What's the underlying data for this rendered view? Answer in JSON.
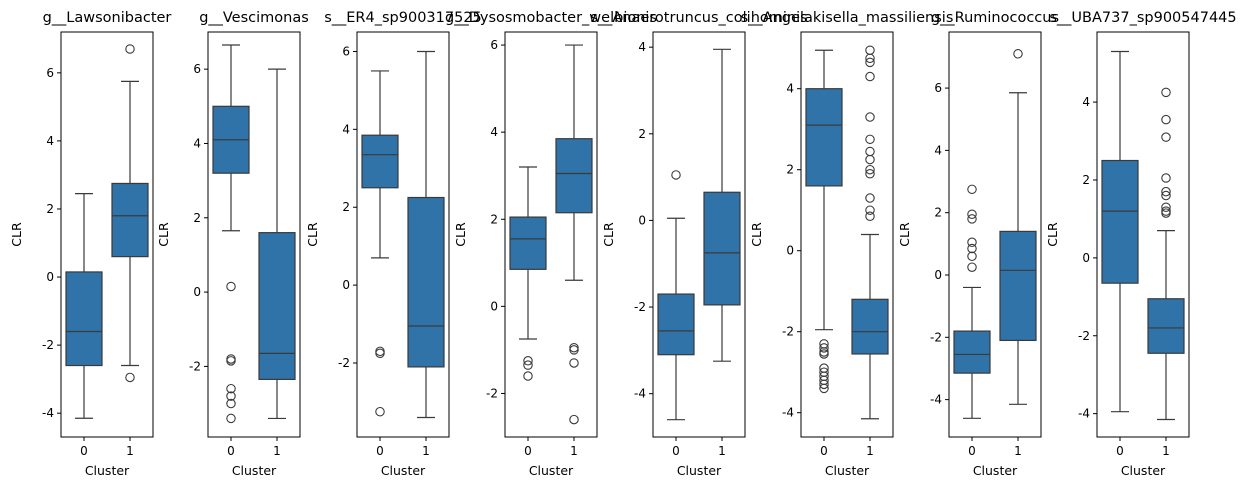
{
  "style": {
    "box_fill": "#2f73a8",
    "line_color": "#3a3a3a",
    "frame_color": "#000000"
  },
  "chart_data": [
    {
      "type": "box",
      "title": "g__Lawsonibacter",
      "xlabel": "Cluster",
      "ylabel": "CLR",
      "categories": [
        "0",
        "1"
      ],
      "ylim": [
        -4.7,
        7.2
      ],
      "yticks": [
        -4,
        -2,
        0,
        2,
        4,
        6
      ],
      "boxes": [
        {
          "category": "0",
          "whisker_low": -4.15,
          "q1": -2.6,
          "median": -1.6,
          "q3": 0.15,
          "whisker_high": 2.45,
          "outliers": []
        },
        {
          "category": "1",
          "whisker_low": -2.6,
          "q1": 0.6,
          "median": 1.8,
          "q3": 2.75,
          "whisker_high": 5.75,
          "outliers": [
            6.7,
            -2.95
          ]
        }
      ]
    },
    {
      "type": "box",
      "title": "g__Vescimonas",
      "xlabel": "Cluster",
      "ylabel": "CLR",
      "categories": [
        "0",
        "1"
      ],
      "ylim": [
        -3.9,
        7.0
      ],
      "yticks": [
        -2,
        0,
        2,
        4,
        6
      ],
      "boxes": [
        {
          "category": "0",
          "whisker_low": 1.65,
          "q1": 3.2,
          "median": 4.1,
          "q3": 5.0,
          "whisker_high": 6.65,
          "outliers": [
            0.15,
            -1.8,
            -1.85,
            -2.6,
            -2.8,
            -3.0,
            -3.4
          ]
        },
        {
          "category": "1",
          "whisker_low": -3.4,
          "q1": -2.35,
          "median": -1.65,
          "q3": 1.6,
          "whisker_high": 6.0,
          "outliers": []
        }
      ]
    },
    {
      "type": "box",
      "title": "s__ER4_sp900317525",
      "xlabel": "Cluster",
      "ylabel": "CLR",
      "categories": [
        "0",
        "1"
      ],
      "ylim": [
        -3.9,
        6.5
      ],
      "yticks": [
        -2,
        0,
        2,
        4,
        6
      ],
      "boxes": [
        {
          "category": "0",
          "whisker_low": 0.7,
          "q1": 2.5,
          "median": 3.35,
          "q3": 3.85,
          "whisker_high": 5.5,
          "outliers": [
            -1.7,
            -1.75,
            -3.25
          ]
        },
        {
          "category": "1",
          "whisker_low": -3.4,
          "q1": -2.1,
          "median": -1.05,
          "q3": 2.25,
          "whisker_high": 6.0,
          "outliers": []
        }
      ]
    },
    {
      "type": "box",
      "title": "g__Dysosmobacter_welbionis",
      "xlabel": "Cluster",
      "ylabel": "CLR",
      "categories": [
        "0",
        "1"
      ],
      "ylim": [
        -3.0,
        6.3
      ],
      "yticks": [
        -2,
        0,
        2,
        4,
        6
      ],
      "boxes": [
        {
          "category": "0",
          "whisker_low": -0.75,
          "q1": 0.85,
          "median": 1.55,
          "q3": 2.05,
          "whisker_high": 3.2,
          "outliers": [
            -1.25,
            -1.35,
            -1.6
          ]
        },
        {
          "category": "1",
          "whisker_low": 0.6,
          "q1": 2.15,
          "median": 3.05,
          "q3": 3.85,
          "whisker_high": 6.0,
          "outliers": [
            -0.95,
            -1.0,
            -1.3,
            -2.6
          ]
        }
      ]
    },
    {
      "type": "box",
      "title": "s__Anaerotruncus_colihominis",
      "xlabel": "Cluster",
      "ylabel": "CLR",
      "categories": [
        "0",
        "1"
      ],
      "ylim": [
        -5.0,
        4.35
      ],
      "yticks": [
        -4,
        -2,
        0,
        2,
        4
      ],
      "boxes": [
        {
          "category": "0",
          "whisker_low": -4.6,
          "q1": -3.1,
          "median": -2.55,
          "q3": -1.7,
          "whisker_high": 0.05,
          "outliers": [
            1.05
          ]
        },
        {
          "category": "1",
          "whisker_low": -3.25,
          "q1": -1.95,
          "median": -0.75,
          "q3": 0.65,
          "whisker_high": 3.95,
          "outliers": []
        }
      ]
    },
    {
      "type": "box",
      "title": "s__Angelakisella_massiliensis",
      "xlabel": "Cluster",
      "ylabel": "CLR",
      "categories": [
        "0",
        "1"
      ],
      "ylim": [
        -4.6,
        5.4
      ],
      "yticks": [
        -4,
        -2,
        0,
        2,
        4
      ],
      "boxes": [
        {
          "category": "0",
          "whisker_low": -1.95,
          "q1": 1.6,
          "median": 3.1,
          "q3": 4.0,
          "whisker_high": 4.95,
          "outliers": [
            -2.3,
            -2.4,
            -2.5,
            -2.55,
            -2.9,
            -3.0,
            -3.1,
            -3.2,
            -3.3,
            -3.4
          ]
        },
        {
          "category": "1",
          "whisker_low": -4.15,
          "q1": -2.55,
          "median": -2.0,
          "q3": -1.2,
          "whisker_high": 0.4,
          "outliers": [
            4.95,
            4.75,
            4.65,
            4.3,
            3.3,
            2.75,
            2.45,
            2.25,
            2.0,
            1.9,
            1.3,
            1.0,
            0.85
          ]
        }
      ]
    },
    {
      "type": "box",
      "title": "g__Ruminococcus",
      "xlabel": "Cluster",
      "ylabel": "CLR",
      "categories": [
        "0",
        "1"
      ],
      "ylim": [
        -5.2,
        7.8
      ],
      "yticks": [
        -4,
        -2,
        0,
        2,
        4,
        6
      ],
      "boxes": [
        {
          "category": "0",
          "whisker_low": -4.6,
          "q1": -3.15,
          "median": -2.55,
          "q3": -1.8,
          "whisker_high": -0.4,
          "outliers": [
            2.75,
            1.95,
            1.8,
            1.05,
            0.85,
            0.6,
            0.25
          ]
        },
        {
          "category": "1",
          "whisker_low": -4.15,
          "q1": -2.1,
          "median": 0.15,
          "q3": 1.4,
          "whisker_high": 5.85,
          "outliers": [
            7.1
          ]
        }
      ]
    },
    {
      "type": "box",
      "title": "s__UBA737_sp900547445",
      "xlabel": "Cluster",
      "ylabel": "CLR",
      "categories": [
        "0",
        "1"
      ],
      "ylim": [
        -4.6,
        5.8
      ],
      "yticks": [
        -4,
        -2,
        0,
        2,
        4
      ],
      "boxes": [
        {
          "category": "0",
          "whisker_low": -3.95,
          "q1": -0.65,
          "median": 1.2,
          "q3": 2.5,
          "whisker_high": 5.3,
          "outliers": []
        },
        {
          "category": "1",
          "whisker_low": -4.15,
          "q1": -2.45,
          "median": -1.8,
          "q3": -1.05,
          "whisker_high": 0.7,
          "outliers": [
            4.25,
            3.55,
            3.1,
            2.05,
            1.7,
            1.6,
            1.3,
            1.2,
            1.15
          ]
        }
      ]
    }
  ]
}
